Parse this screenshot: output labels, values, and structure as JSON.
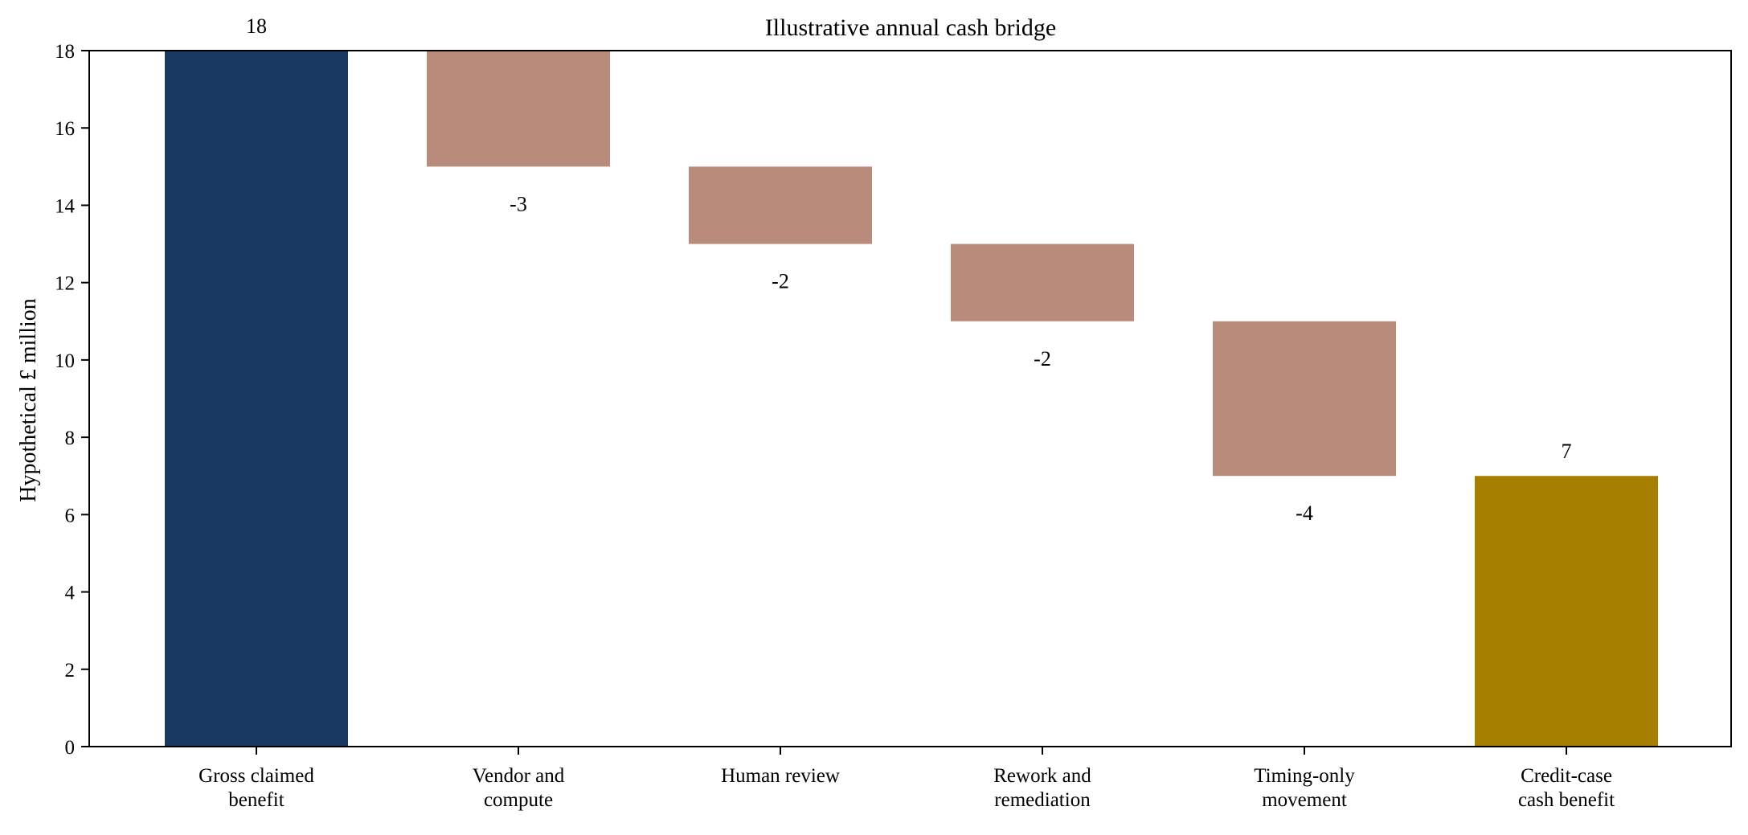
{
  "chart_data": {
    "type": "bar",
    "subtype": "waterfall",
    "title": "Illustrative annual cash bridge",
    "xlabel": "",
    "ylabel": "Hypothetical £ million",
    "ylim": [
      0,
      18
    ],
    "yticks": [
      0,
      2,
      4,
      6,
      8,
      10,
      12,
      14,
      16,
      18
    ],
    "grid": false,
    "legend": "none",
    "categories": [
      [
        "Gross claimed",
        "benefit"
      ],
      [
        "Vendor and",
        "compute"
      ],
      [
        "Human review"
      ],
      [
        "Rework and",
        "remediation"
      ],
      [
        "Timing-only",
        "movement"
      ],
      [
        "Credit-case",
        "cash benefit"
      ]
    ],
    "steps": [
      {
        "kind": "total",
        "value": 18,
        "label": "18"
      },
      {
        "kind": "delta",
        "value": -3,
        "label": "-3"
      },
      {
        "kind": "delta",
        "value": -2,
        "label": "-2"
      },
      {
        "kind": "delta",
        "value": -2,
        "label": "-2"
      },
      {
        "kind": "delta",
        "value": -4,
        "label": "-4"
      },
      {
        "kind": "total",
        "value": 7,
        "label": "7"
      }
    ],
    "colors": {
      "start_total": "#1b3a63",
      "decrease": "#b98b7b",
      "end_total": "#a67f00",
      "axis": "#000000"
    }
  }
}
